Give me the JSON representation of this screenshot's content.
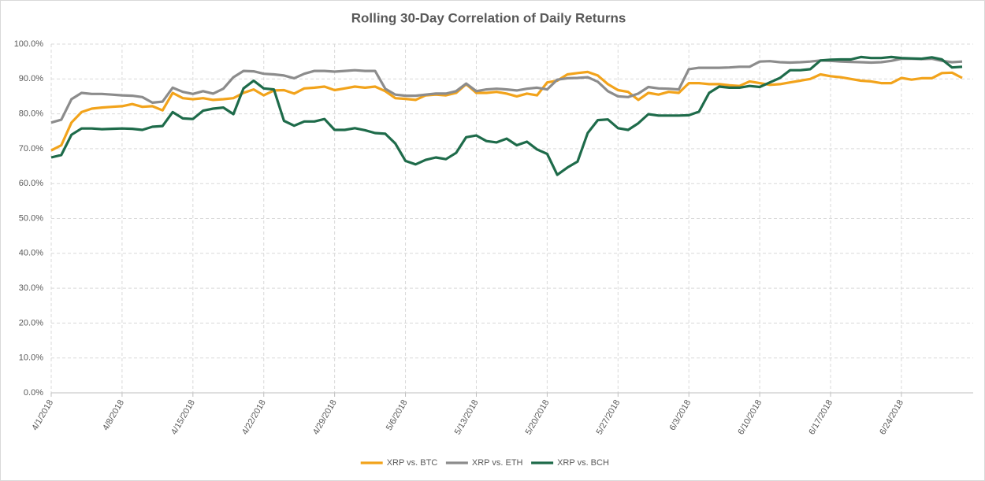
{
  "chart_data": {
    "type": "line",
    "title": "Rolling 30-Day Correlation of Daily Returns",
    "categories": [
      "4/1/2018",
      null,
      null,
      null,
      null,
      null,
      null,
      "4/8/2018",
      null,
      null,
      null,
      null,
      null,
      null,
      "4/15/2018",
      null,
      null,
      null,
      null,
      null,
      null,
      "4/22/2018",
      null,
      null,
      null,
      null,
      null,
      null,
      "4/29/2018",
      null,
      null,
      null,
      null,
      null,
      null,
      "5/6/2018",
      null,
      null,
      null,
      null,
      null,
      null,
      "5/13/2018",
      null,
      null,
      null,
      null,
      null,
      null,
      "5/20/2018",
      null,
      null,
      null,
      null,
      null,
      null,
      "5/27/2018",
      null,
      null,
      null,
      null,
      null,
      null,
      "6/3/2018",
      null,
      null,
      null,
      null,
      null,
      null,
      "6/10/2018",
      null,
      null,
      null,
      null,
      null,
      null,
      "6/17/2018",
      null,
      null,
      null,
      null,
      null,
      null,
      "6/24/2018",
      null,
      null,
      null,
      null,
      null,
      null
    ],
    "series": [
      {
        "name": "XRP vs. BTC",
        "color": "#f2a31b",
        "values": [
          69.5,
          71,
          77.5,
          80.5,
          81.5,
          81.8,
          82,
          82.2,
          82.8,
          82,
          82.2,
          81,
          86,
          84.5,
          84.2,
          84.5,
          84,
          84.2,
          84.5,
          86,
          87,
          85.3,
          86.7,
          86.8,
          85.8,
          87.3,
          87.5,
          87.8,
          86.8,
          87.3,
          87.8,
          87.5,
          87.8,
          86.5,
          84.5,
          84.3,
          84,
          85.3,
          85.5,
          85.3,
          86,
          88.5,
          86,
          86,
          86.3,
          85.8,
          85,
          85.8,
          85.3,
          89,
          89.5,
          91.3,
          91.7,
          92,
          91,
          88.5,
          86.8,
          86.3,
          84,
          86,
          85.5,
          86.3,
          86,
          88.8,
          88.8,
          88.5,
          88.5,
          88.2,
          88,
          89.3,
          88.8,
          88.3,
          88.5,
          89,
          89.5,
          90,
          91.3,
          90.8,
          90.5,
          90,
          89.5,
          89.3,
          88.8,
          88.8,
          90.3,
          89.8,
          90.2,
          90.2,
          91.7,
          91.8,
          90.3
        ]
      },
      {
        "name": "XRP vs. ETH",
        "color": "#8c8c8c",
        "values": [
          77.5,
          78.3,
          84.2,
          86,
          85.7,
          85.7,
          85.5,
          85.3,
          85.2,
          84.8,
          83.2,
          83.5,
          87.5,
          86.3,
          85.7,
          86.5,
          85.8,
          87.2,
          90.5,
          92.3,
          92.2,
          91.5,
          91.3,
          91,
          90.2,
          91.5,
          92.3,
          92.3,
          92.1,
          92.3,
          92.5,
          92.3,
          92.3,
          87.2,
          85.5,
          85.2,
          85.2,
          85.5,
          85.8,
          85.8,
          86.5,
          88.7,
          86.5,
          87,
          87.2,
          87,
          86.7,
          87.2,
          87.5,
          87,
          89.8,
          90.2,
          90.3,
          90.5,
          89.2,
          86.5,
          85,
          84.8,
          85.8,
          87.7,
          87.3,
          87.2,
          87,
          92.8,
          93.2,
          93.2,
          93.2,
          93.3,
          93.5,
          93.5,
          95,
          95.1,
          94.8,
          94.7,
          94.8,
          95,
          95.3,
          95.2,
          95,
          94.9,
          94.8,
          94.7,
          94.8,
          95.2,
          95.8,
          95.8,
          95.7,
          95.8,
          95.2,
          94.8,
          95
        ]
      },
      {
        "name": "XRP vs. BCH",
        "color": "#1e6b4a",
        "values": [
          67.5,
          68.2,
          74,
          75.8,
          75.8,
          75.6,
          75.7,
          75.8,
          75.7,
          75.4,
          76.3,
          76.5,
          80.5,
          78.7,
          78.5,
          80.9,
          81.5,
          81.8,
          79.9,
          87.3,
          89.5,
          87.3,
          87,
          78,
          76.6,
          77.8,
          77.8,
          78.5,
          75.4,
          75.4,
          75.9,
          75.3,
          74.5,
          74.3,
          71.5,
          66.5,
          65.5,
          66.8,
          67.5,
          67,
          68.8,
          73.3,
          73.8,
          72.2,
          71.8,
          72.9,
          71,
          72,
          69.8,
          68.5,
          62.5,
          64.6,
          66.3,
          74.5,
          78.2,
          78.4,
          75.9,
          75.4,
          77.3,
          79.9,
          79.5,
          79.5,
          79.5,
          79.6,
          80.6,
          86,
          87.8,
          87.5,
          87.5,
          88,
          87.7,
          89,
          90.3,
          92.5,
          92.5,
          92.8,
          95.3,
          95.5,
          95.6,
          95.6,
          96.3,
          96,
          96,
          96.3,
          96,
          95.9,
          95.8,
          96.2,
          95.6,
          93.3,
          93.5
        ]
      }
    ],
    "ylim": [
      0,
      100
    ],
    "yticks": [
      {
        "value": 0,
        "label": "0.0%"
      },
      {
        "value": 10,
        "label": "10.0%"
      },
      {
        "value": 20,
        "label": "20.0%"
      },
      {
        "value": 30,
        "label": "30.0%"
      },
      {
        "value": 40,
        "label": "40.0%"
      },
      {
        "value": 50,
        "label": "50.0%"
      },
      {
        "value": 60,
        "label": "60.0%"
      },
      {
        "value": 70,
        "label": "70.0%"
      },
      {
        "value": 80,
        "label": "80.0%"
      },
      {
        "value": 90,
        "label": "90.0%"
      },
      {
        "value": 100,
        "label": "100.0%"
      }
    ],
    "grid": true,
    "legend": "bottom"
  }
}
